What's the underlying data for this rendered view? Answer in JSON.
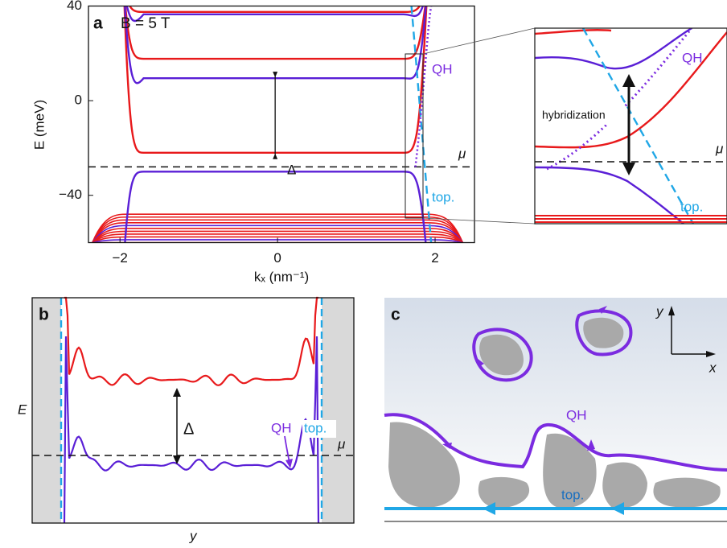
{
  "chart_data": {
    "type": "line",
    "panel_label": "a",
    "annotation": "B = 5 T",
    "xlabel": "kₓ (nm⁻¹)",
    "ylabel": "E (meV)",
    "xlim": [
      -2.4,
      2.5
    ],
    "ylim": [
      -60,
      40
    ],
    "xticks": [
      {
        "value": -2,
        "label": "−2"
      },
      0,
      2
    ],
    "yticks": [
      {
        "value": -40,
        "label": "−40"
      },
      0,
      40
    ],
    "series": [
      {
        "color": "#e8191b",
        "values": [
          37.5,
          17.7,
          -22
        ]
      },
      {
        "color": "#5a1fd6",
        "values": [
          36.5,
          9.5,
          -30
        ]
      }
    ],
    "mu": -28,
    "bulk_band_edge": -48,
    "gap_label": "Δ",
    "mu_label": "μ",
    "qh_label": "QH",
    "top_label": "top.",
    "inset": {
      "hybridization_label": "hybridization",
      "qh_label": "QH",
      "top_label": "top.",
      "mu_label": "μ"
    }
  },
  "panel_b": {
    "panel_label": "b",
    "ylabel": "E",
    "xlabel": "y",
    "gap_label": "Δ",
    "qh_label": "QH",
    "top_label": "top.",
    "mu_label": "μ"
  },
  "panel_c": {
    "panel_label": "c",
    "y_axis": "y",
    "x_axis": "x",
    "qh_label": "QH",
    "top_label": "top."
  }
}
